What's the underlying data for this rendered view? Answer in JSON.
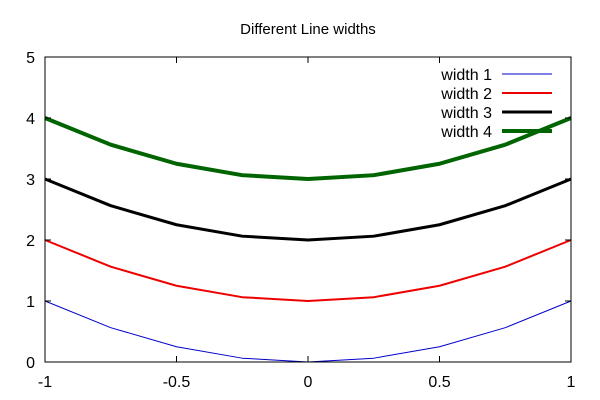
{
  "chart_data": {
    "type": "line",
    "title": "Different Line widths",
    "xlabel": "",
    "ylabel": "",
    "xlim": [
      -1,
      1
    ],
    "ylim": [
      0,
      5
    ],
    "x_ticks": [
      -1,
      -0.5,
      0,
      0.5,
      1
    ],
    "x_tick_labels": [
      "-1",
      "-0.5",
      "0",
      "0.5",
      "1"
    ],
    "y_ticks": [
      0,
      1,
      2,
      3,
      4,
      5
    ],
    "y_tick_labels": [
      "0",
      "1",
      "2",
      "3",
      "4",
      "5"
    ],
    "grid": false,
    "legend_position": "top-right",
    "series": [
      {
        "name": "width 1",
        "color": "#0000cc",
        "line_width": 1,
        "x": [
          -1,
          -0.75,
          -0.5,
          -0.25,
          0,
          0.25,
          0.5,
          0.75,
          1
        ],
        "y": [
          1,
          0.5625,
          0.25,
          0.0625,
          0,
          0.0625,
          0.25,
          0.5625,
          1
        ]
      },
      {
        "name": "width 2",
        "color": "#ee0000",
        "line_width": 2,
        "x": [
          -1,
          -0.75,
          -0.5,
          -0.25,
          0,
          0.25,
          0.5,
          0.75,
          1
        ],
        "y": [
          2,
          1.5625,
          1.25,
          1.0625,
          1,
          1.0625,
          1.25,
          1.5625,
          2
        ]
      },
      {
        "name": "width 3",
        "color": "#000000",
        "line_width": 3,
        "x": [
          -1,
          -0.75,
          -0.5,
          -0.25,
          0,
          0.25,
          0.5,
          0.75,
          1
        ],
        "y": [
          3,
          2.5625,
          2.25,
          2.0625,
          2,
          2.0625,
          2.25,
          2.5625,
          3
        ]
      },
      {
        "name": "width 4",
        "color": "#006400",
        "line_width": 4,
        "x": [
          -1,
          -0.75,
          -0.5,
          -0.25,
          0,
          0.25,
          0.5,
          0.75,
          1
        ],
        "y": [
          4,
          3.5625,
          3.25,
          3.0625,
          3,
          3.0625,
          3.25,
          3.5625,
          4
        ]
      }
    ]
  }
}
